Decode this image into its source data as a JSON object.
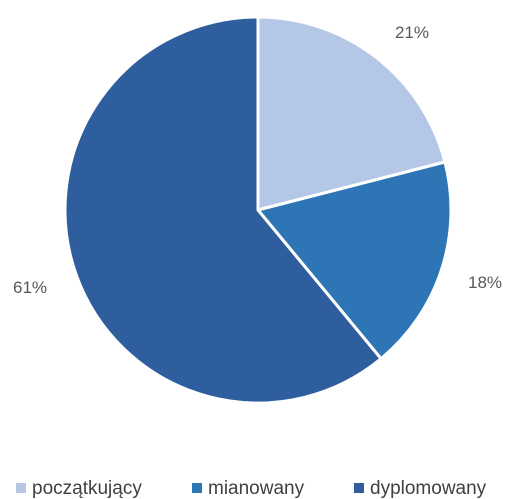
{
  "chart_data": {
    "type": "pie",
    "title": "",
    "categories": [
      "początkujący",
      "mianowany",
      "dyplomowany"
    ],
    "values": [
      21,
      18,
      61
    ],
    "labels": [
      "21%",
      "18%",
      "61%"
    ],
    "colors": [
      "#b4c7e7",
      "#2e75b6",
      "#2f5e9e"
    ],
    "start_angle_deg": 0,
    "direction": "clockwise",
    "legend_position": "bottom"
  }
}
